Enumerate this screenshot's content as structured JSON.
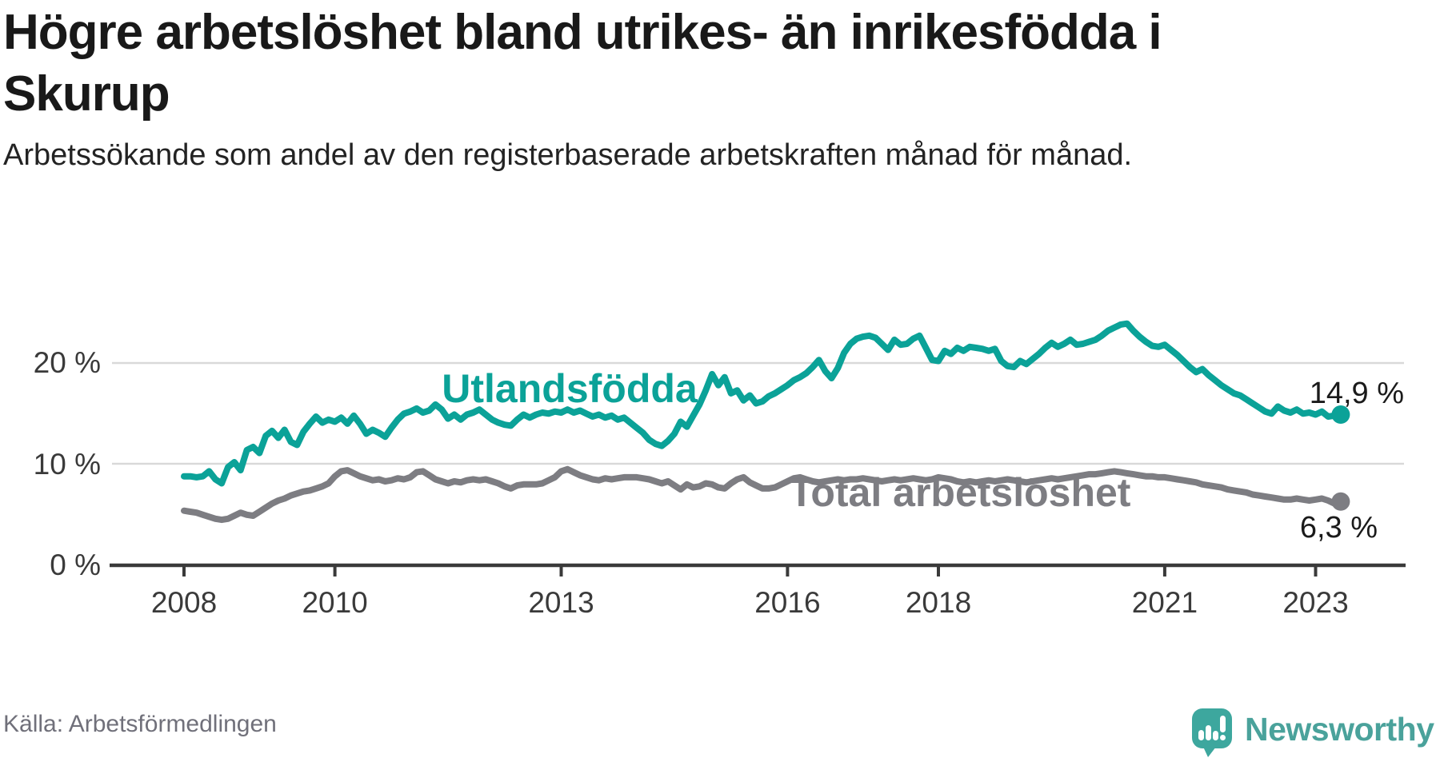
{
  "title": "Högre arbetslöshet bland utrikes- än inrikesfödda i Skurup",
  "subtitle": "Arbetssökande som andel av den registerbaserade arbetskraften månad för månad.",
  "source": "Källa: Arbetsförmedlingen",
  "branding": {
    "wordmark": "Newsworthy",
    "logo_icon": "speech-bubble-bar-chart-icon",
    "brand_teal": "#3da79e"
  },
  "chart_data": {
    "type": "line",
    "title": "Högre arbetslöshet bland utrikes- än inrikesfödda i Skurup",
    "x_unit": "month",
    "x_start": "2008-01",
    "x_end": "2023-05",
    "x_ticks": [
      2008,
      2010,
      2013,
      2016,
      2018,
      2021,
      2023
    ],
    "y_ticks": [
      {
        "label": "0 %",
        "value": 0
      },
      {
        "label": "10 %",
        "value": 10
      },
      {
        "label": "20 %",
        "value": 20
      }
    ],
    "ylim": [
      0,
      25
    ],
    "grid": "horizontal",
    "legend": "inline-labels",
    "series": [
      {
        "name": "Utlandsfödda",
        "color": "#0ba298",
        "end_label": "14,9 %",
        "end_value": 14.9,
        "values": [
          8.8,
          8.8,
          8.7,
          8.8,
          9.3,
          8.5,
          8.1,
          9.7,
          10.2,
          9.4,
          11.4,
          11.7,
          11.1,
          12.8,
          13.3,
          12.6,
          13.4,
          12.2,
          11.9,
          13.2,
          14.0,
          14.7,
          14.1,
          14.4,
          14.2,
          14.6,
          14.0,
          14.8,
          14.0,
          13.0,
          13.4,
          13.1,
          12.7,
          13.6,
          14.4,
          15.0,
          15.2,
          15.5,
          15.1,
          15.3,
          15.9,
          15.4,
          14.5,
          14.9,
          14.4,
          14.9,
          15.1,
          15.4,
          14.9,
          14.4,
          14.1,
          13.9,
          13.8,
          14.4,
          14.9,
          14.6,
          14.9,
          15.1,
          15.0,
          15.2,
          15.1,
          15.4,
          15.1,
          15.3,
          15.0,
          14.7,
          14.9,
          14.6,
          14.8,
          14.4,
          14.6,
          14.1,
          13.6,
          13.1,
          12.4,
          12.0,
          11.8,
          12.3,
          13.0,
          14.2,
          13.7,
          14.8,
          15.9,
          17.3,
          18.9,
          17.8,
          18.6,
          17.0,
          17.3,
          16.3,
          16.8,
          16.0,
          16.2,
          16.7,
          17.0,
          17.4,
          17.8,
          18.3,
          18.6,
          19.0,
          19.6,
          20.3,
          19.2,
          18.5,
          19.5,
          21.0,
          21.9,
          22.4,
          22.6,
          22.7,
          22.5,
          21.9,
          21.3,
          22.3,
          21.8,
          21.9,
          22.4,
          22.7,
          21.5,
          20.3,
          20.2,
          21.2,
          20.9,
          21.5,
          21.2,
          21.6,
          21.5,
          21.4,
          21.2,
          21.4,
          20.2,
          19.7,
          19.6,
          20.2,
          19.9,
          20.4,
          20.9,
          21.5,
          22.0,
          21.6,
          21.9,
          22.3,
          21.8,
          21.9,
          22.1,
          22.3,
          22.7,
          23.2,
          23.5,
          23.8,
          23.9,
          23.2,
          22.6,
          22.1,
          21.7,
          21.6,
          21.8,
          21.3,
          20.8,
          20.2,
          19.6,
          19.1,
          19.4,
          18.8,
          18.3,
          17.8,
          17.4,
          17.0,
          16.8,
          16.4,
          16.0,
          15.6,
          15.2,
          15.0,
          15.7,
          15.3,
          15.1,
          15.4,
          15.0,
          15.1,
          14.9,
          15.2,
          14.7,
          14.8,
          14.9
        ]
      },
      {
        "name": "Total arbetslöshet",
        "color": "#7d7d82",
        "end_label": "6,3 %",
        "end_value": 6.3,
        "values": [
          5.4,
          5.3,
          5.2,
          5.0,
          4.8,
          4.6,
          4.5,
          4.6,
          4.9,
          5.2,
          5.0,
          4.9,
          5.3,
          5.7,
          6.1,
          6.4,
          6.6,
          6.9,
          7.1,
          7.3,
          7.4,
          7.6,
          7.8,
          8.1,
          8.8,
          9.3,
          9.4,
          9.1,
          8.8,
          8.6,
          8.4,
          8.5,
          8.3,
          8.4,
          8.6,
          8.5,
          8.7,
          9.2,
          9.3,
          8.9,
          8.5,
          8.3,
          8.1,
          8.3,
          8.2,
          8.4,
          8.5,
          8.4,
          8.5,
          8.3,
          8.1,
          7.8,
          7.6,
          7.9,
          8.0,
          8.0,
          8.0,
          8.1,
          8.4,
          8.7,
          9.3,
          9.5,
          9.2,
          8.9,
          8.7,
          8.5,
          8.4,
          8.6,
          8.5,
          8.6,
          8.7,
          8.7,
          8.7,
          8.6,
          8.5,
          8.3,
          8.1,
          8.3,
          7.9,
          7.5,
          8.0,
          7.7,
          7.8,
          8.1,
          8.0,
          7.7,
          7.6,
          8.1,
          8.5,
          8.7,
          8.2,
          7.9,
          7.6,
          7.6,
          7.7,
          8.0,
          8.3,
          8.6,
          8.7,
          8.5,
          8.3,
          8.2,
          8.3,
          8.4,
          8.5,
          8.4,
          8.5,
          8.5,
          8.6,
          8.5,
          8.4,
          8.3,
          8.4,
          8.5,
          8.4,
          8.5,
          8.6,
          8.5,
          8.4,
          8.5,
          8.7,
          8.6,
          8.5,
          8.3,
          8.2,
          8.3,
          8.2,
          8.3,
          8.4,
          8.3,
          8.4,
          8.5,
          8.4,
          8.3,
          8.2,
          8.3,
          8.4,
          8.5,
          8.6,
          8.5,
          8.6,
          8.7,
          8.8,
          8.9,
          9.0,
          9.0,
          9.1,
          9.2,
          9.3,
          9.2,
          9.1,
          9.0,
          8.9,
          8.8,
          8.8,
          8.7,
          8.7,
          8.6,
          8.5,
          8.4,
          8.3,
          8.2,
          8.0,
          7.9,
          7.8,
          7.7,
          7.5,
          7.4,
          7.3,
          7.2,
          7.0,
          6.9,
          6.8,
          6.7,
          6.6,
          6.5,
          6.5,
          6.6,
          6.5,
          6.4,
          6.5,
          6.6,
          6.4,
          6.1,
          6.3
        ]
      }
    ]
  }
}
